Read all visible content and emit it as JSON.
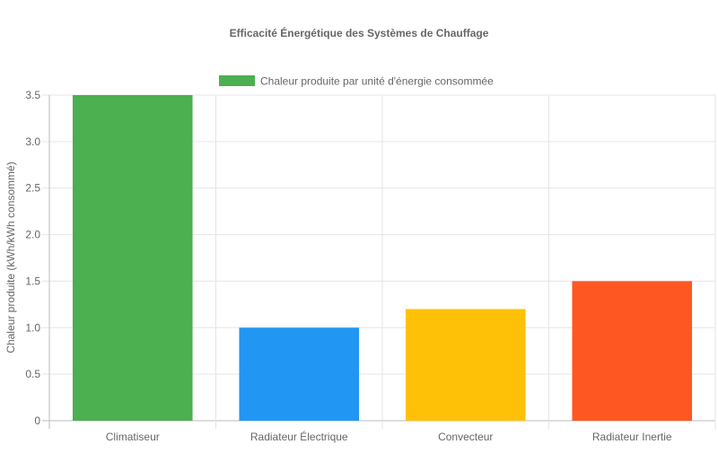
{
  "chart_data": {
    "type": "bar",
    "title": "Efficacité Énergétique des Systèmes de Chauffage",
    "ylabel": "Chaleur produite (kWh/kWh consommé)",
    "xlabel": "",
    "categories": [
      "Climatiseur",
      "Radiateur Électrique",
      "Convecteur",
      "Radiateur Inertie"
    ],
    "series": [
      {
        "name": "Chaleur produite par unité d'énergie consommée",
        "values": [
          3.5,
          1.0,
          1.2,
          1.5
        ],
        "colors": [
          "#4caf50",
          "#2196f3",
          "#ffc107",
          "#ff5722"
        ]
      }
    ],
    "ylim": [
      0,
      3.5
    ],
    "yticks": [
      "0",
      "0.5",
      "1.0",
      "1.5",
      "2.0",
      "2.5",
      "3.0",
      "3.5"
    ],
    "legend_color": "#4caf50",
    "grid": true,
    "legend_position": "top"
  }
}
